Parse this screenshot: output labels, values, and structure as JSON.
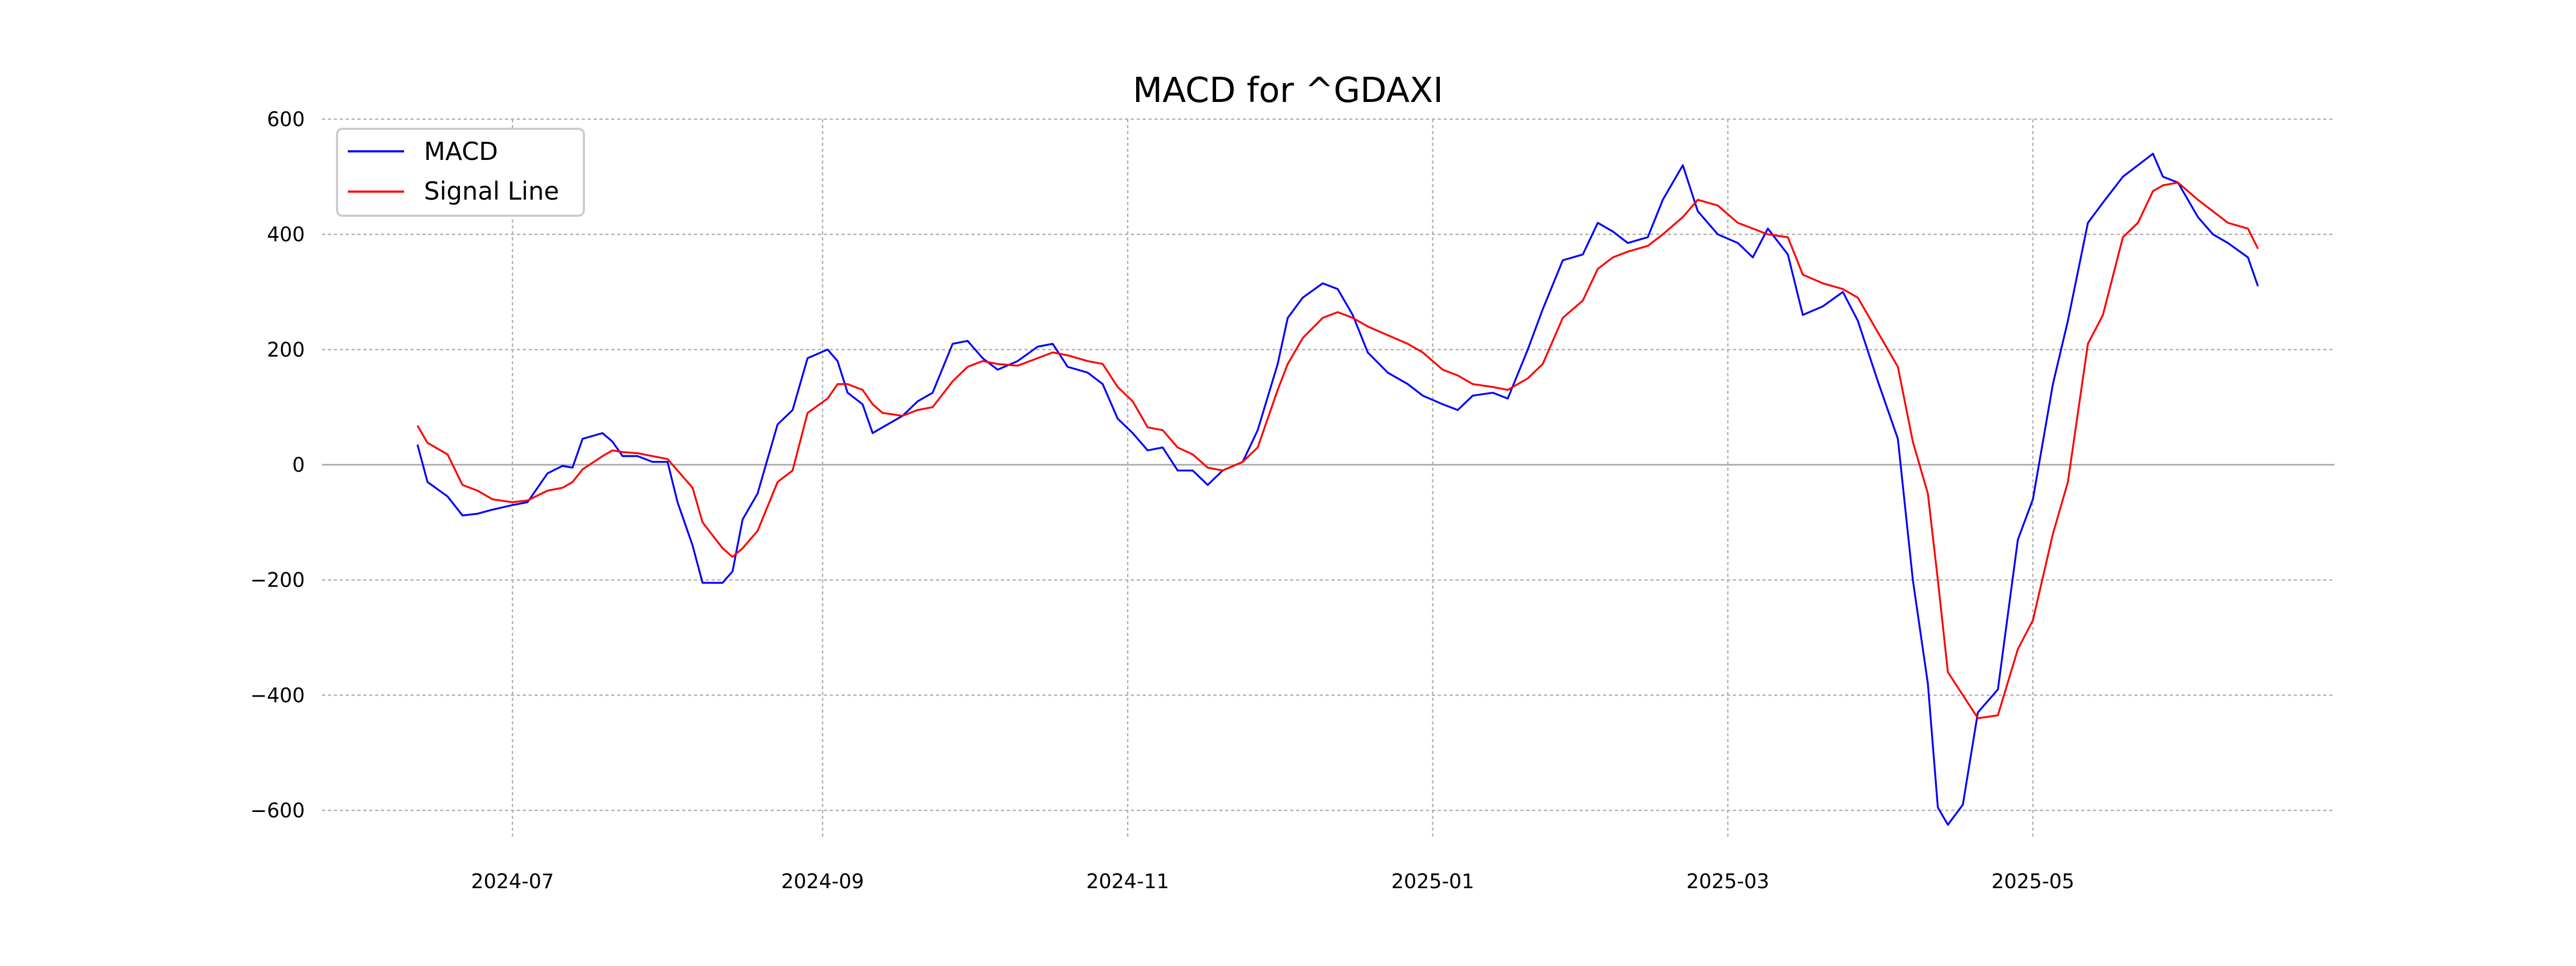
{
  "chart_data": {
    "type": "line",
    "title": "MACD for ^GDAXI",
    "xlabel": "",
    "ylabel": "",
    "grid": true,
    "legend_position": "top-left",
    "ylim": [
      -660,
      600
    ],
    "xlim": [
      "2024-06-01",
      "2025-06-30"
    ],
    "y_ticks": [
      600,
      400,
      200,
      0,
      -200,
      -400,
      -600
    ],
    "y_tick_labels": [
      "600",
      "400",
      "200",
      "0",
      "−200",
      "−400",
      "−600"
    ],
    "x_ticks": [
      "2024-07-01",
      "2024-09-01",
      "2024-11-01",
      "2025-01-01",
      "2025-03-01",
      "2025-05-01"
    ],
    "x_tick_labels": [
      "2024-07",
      "2024-09",
      "2024-11",
      "2025-01",
      "2025-03",
      "2025-05"
    ],
    "series": [
      {
        "name": "MACD",
        "color": "#0000ff",
        "points": [
          [
            "2024-06-12",
            35
          ],
          [
            "2024-06-14",
            -30
          ],
          [
            "2024-06-18",
            -55
          ],
          [
            "2024-06-21",
            -88
          ],
          [
            "2024-06-24",
            -85
          ],
          [
            "2024-06-27",
            -78
          ],
          [
            "2024-07-01",
            -70
          ],
          [
            "2024-07-04",
            -65
          ],
          [
            "2024-07-08",
            -15
          ],
          [
            "2024-07-11",
            -2
          ],
          [
            "2024-07-13",
            -5
          ],
          [
            "2024-07-15",
            45
          ],
          [
            "2024-07-19",
            55
          ],
          [
            "2024-07-21",
            40
          ],
          [
            "2024-07-23",
            15
          ],
          [
            "2024-07-26",
            15
          ],
          [
            "2024-07-29",
            5
          ],
          [
            "2024-08-01",
            5
          ],
          [
            "2024-08-03",
            -65
          ],
          [
            "2024-08-06",
            -140
          ],
          [
            "2024-08-08",
            -205
          ],
          [
            "2024-08-12",
            -205
          ],
          [
            "2024-08-14",
            -185
          ],
          [
            "2024-08-16",
            -95
          ],
          [
            "2024-08-19",
            -50
          ],
          [
            "2024-08-23",
            70
          ],
          [
            "2024-08-26",
            95
          ],
          [
            "2024-08-29",
            185
          ],
          [
            "2024-09-02",
            200
          ],
          [
            "2024-09-04",
            180
          ],
          [
            "2024-09-06",
            125
          ],
          [
            "2024-09-09",
            105
          ],
          [
            "2024-09-11",
            55
          ],
          [
            "2024-09-13",
            65
          ],
          [
            "2024-09-17",
            85
          ],
          [
            "2024-09-20",
            110
          ],
          [
            "2024-09-23",
            125
          ],
          [
            "2024-09-27",
            210
          ],
          [
            "2024-09-30",
            215
          ],
          [
            "2024-10-03",
            185
          ],
          [
            "2024-10-06",
            165
          ],
          [
            "2024-10-10",
            180
          ],
          [
            "2024-10-14",
            205
          ],
          [
            "2024-10-17",
            210
          ],
          [
            "2024-10-20",
            170
          ],
          [
            "2024-10-24",
            160
          ],
          [
            "2024-10-27",
            140
          ],
          [
            "2024-10-30",
            80
          ],
          [
            "2024-11-02",
            55
          ],
          [
            "2024-11-05",
            25
          ],
          [
            "2024-11-08",
            30
          ],
          [
            "2024-11-11",
            -10
          ],
          [
            "2024-11-14",
            -10
          ],
          [
            "2024-11-17",
            -35
          ],
          [
            "2024-11-20",
            -10
          ],
          [
            "2024-11-24",
            5
          ],
          [
            "2024-11-27",
            60
          ],
          [
            "2024-12-01",
            175
          ],
          [
            "2024-12-03",
            255
          ],
          [
            "2024-12-06",
            290
          ],
          [
            "2024-12-10",
            315
          ],
          [
            "2024-12-13",
            305
          ],
          [
            "2024-12-16",
            260
          ],
          [
            "2024-12-19",
            195
          ],
          [
            "2024-12-23",
            160
          ],
          [
            "2024-12-27",
            140
          ],
          [
            "2024-12-30",
            120
          ],
          [
            "2025-01-03",
            105
          ],
          [
            "2025-01-06",
            95
          ],
          [
            "2025-01-09",
            120
          ],
          [
            "2025-01-13",
            125
          ],
          [
            "2025-01-16",
            115
          ],
          [
            "2025-01-20",
            200
          ],
          [
            "2025-01-23",
            270
          ],
          [
            "2025-01-27",
            355
          ],
          [
            "2025-01-31",
            365
          ],
          [
            "2025-02-03",
            420
          ],
          [
            "2025-02-06",
            405
          ],
          [
            "2025-02-09",
            385
          ],
          [
            "2025-02-13",
            395
          ],
          [
            "2025-02-16",
            460
          ],
          [
            "2025-02-20",
            520
          ],
          [
            "2025-02-23",
            440
          ],
          [
            "2025-02-27",
            400
          ],
          [
            "2025-03-03",
            385
          ],
          [
            "2025-03-06",
            360
          ],
          [
            "2025-03-09",
            410
          ],
          [
            "2025-03-13",
            365
          ],
          [
            "2025-03-16",
            260
          ],
          [
            "2025-03-20",
            275
          ],
          [
            "2025-03-24",
            300
          ],
          [
            "2025-03-27",
            250
          ],
          [
            "2025-03-31",
            145
          ],
          [
            "2025-04-04",
            45
          ],
          [
            "2025-04-07",
            -200
          ],
          [
            "2025-04-10",
            -380
          ],
          [
            "2025-04-12",
            -595
          ],
          [
            "2025-04-14",
            -625
          ],
          [
            "2025-04-17",
            -590
          ],
          [
            "2025-04-20",
            -430
          ],
          [
            "2025-04-24",
            -390
          ],
          [
            "2025-04-28",
            -130
          ],
          [
            "2025-05-01",
            -60
          ],
          [
            "2025-05-05",
            140
          ],
          [
            "2025-05-08",
            250
          ],
          [
            "2025-05-12",
            420
          ],
          [
            "2025-05-15",
            455
          ],
          [
            "2025-05-19",
            500
          ],
          [
            "2025-05-22",
            520
          ],
          [
            "2025-05-25",
            540
          ],
          [
            "2025-05-27",
            500
          ],
          [
            "2025-05-30",
            490
          ],
          [
            "2025-06-03",
            430
          ],
          [
            "2025-06-06",
            400
          ],
          [
            "2025-06-09",
            385
          ],
          [
            "2025-06-13",
            360
          ],
          [
            "2025-06-15",
            310
          ]
        ]
      },
      {
        "name": "Signal Line",
        "color": "#ff0000",
        "points": [
          [
            "2024-06-12",
            68
          ],
          [
            "2024-06-14",
            38
          ],
          [
            "2024-06-18",
            18
          ],
          [
            "2024-06-21",
            -35
          ],
          [
            "2024-06-24",
            -45
          ],
          [
            "2024-06-27",
            -60
          ],
          [
            "2024-07-01",
            -65
          ],
          [
            "2024-07-04",
            -62
          ],
          [
            "2024-07-08",
            -45
          ],
          [
            "2024-07-11",
            -40
          ],
          [
            "2024-07-13",
            -30
          ],
          [
            "2024-07-15",
            -8
          ],
          [
            "2024-07-19",
            15
          ],
          [
            "2024-07-21",
            25
          ],
          [
            "2024-07-23",
            22
          ],
          [
            "2024-07-26",
            20
          ],
          [
            "2024-07-29",
            15
          ],
          [
            "2024-08-01",
            10
          ],
          [
            "2024-08-03",
            -10
          ],
          [
            "2024-08-06",
            -40
          ],
          [
            "2024-08-08",
            -100
          ],
          [
            "2024-08-12",
            -145
          ],
          [
            "2024-08-14",
            -160
          ],
          [
            "2024-08-16",
            -145
          ],
          [
            "2024-08-19",
            -115
          ],
          [
            "2024-08-23",
            -30
          ],
          [
            "2024-08-26",
            -10
          ],
          [
            "2024-08-29",
            90
          ],
          [
            "2024-09-02",
            115
          ],
          [
            "2024-09-04",
            140
          ],
          [
            "2024-09-06",
            140
          ],
          [
            "2024-09-09",
            130
          ],
          [
            "2024-09-11",
            105
          ],
          [
            "2024-09-13",
            90
          ],
          [
            "2024-09-17",
            85
          ],
          [
            "2024-09-20",
            95
          ],
          [
            "2024-09-23",
            100
          ],
          [
            "2024-09-27",
            145
          ],
          [
            "2024-09-30",
            170
          ],
          [
            "2024-10-03",
            180
          ],
          [
            "2024-10-06",
            175
          ],
          [
            "2024-10-10",
            172
          ],
          [
            "2024-10-14",
            185
          ],
          [
            "2024-10-17",
            195
          ],
          [
            "2024-10-20",
            190
          ],
          [
            "2024-10-24",
            180
          ],
          [
            "2024-10-27",
            175
          ],
          [
            "2024-10-30",
            135
          ],
          [
            "2024-11-02",
            110
          ],
          [
            "2024-11-05",
            65
          ],
          [
            "2024-11-08",
            60
          ],
          [
            "2024-11-11",
            30
          ],
          [
            "2024-11-14",
            18
          ],
          [
            "2024-11-17",
            -5
          ],
          [
            "2024-11-20",
            -10
          ],
          [
            "2024-11-24",
            5
          ],
          [
            "2024-11-27",
            30
          ],
          [
            "2024-12-01",
            130
          ],
          [
            "2024-12-03",
            175
          ],
          [
            "2024-12-06",
            220
          ],
          [
            "2024-12-10",
            255
          ],
          [
            "2024-12-13",
            265
          ],
          [
            "2024-12-16",
            255
          ],
          [
            "2024-12-19",
            240
          ],
          [
            "2024-12-23",
            225
          ],
          [
            "2024-12-27",
            210
          ],
          [
            "2024-12-30",
            195
          ],
          [
            "2025-01-03",
            165
          ],
          [
            "2025-01-06",
            155
          ],
          [
            "2025-01-09",
            140
          ],
          [
            "2025-01-13",
            135
          ],
          [
            "2025-01-16",
            130
          ],
          [
            "2025-01-20",
            150
          ],
          [
            "2025-01-23",
            175
          ],
          [
            "2025-01-27",
            255
          ],
          [
            "2025-01-31",
            285
          ],
          [
            "2025-02-03",
            340
          ],
          [
            "2025-02-06",
            360
          ],
          [
            "2025-02-09",
            370
          ],
          [
            "2025-02-13",
            380
          ],
          [
            "2025-02-16",
            400
          ],
          [
            "2025-02-20",
            430
          ],
          [
            "2025-02-23",
            460
          ],
          [
            "2025-02-27",
            450
          ],
          [
            "2025-03-03",
            420
          ],
          [
            "2025-03-06",
            410
          ],
          [
            "2025-03-09",
            400
          ],
          [
            "2025-03-13",
            395
          ],
          [
            "2025-03-16",
            330
          ],
          [
            "2025-03-20",
            315
          ],
          [
            "2025-03-24",
            305
          ],
          [
            "2025-03-27",
            290
          ],
          [
            "2025-03-31",
            230
          ],
          [
            "2025-04-04",
            170
          ],
          [
            "2025-04-07",
            40
          ],
          [
            "2025-04-10",
            -50
          ],
          [
            "2025-04-12",
            -200
          ],
          [
            "2025-04-14",
            -360
          ],
          [
            "2025-04-17",
            -400
          ],
          [
            "2025-04-20",
            -440
          ],
          [
            "2025-04-24",
            -435
          ],
          [
            "2025-04-28",
            -320
          ],
          [
            "2025-05-01",
            -270
          ],
          [
            "2025-05-05",
            -120
          ],
          [
            "2025-05-08",
            -30
          ],
          [
            "2025-05-12",
            210
          ],
          [
            "2025-05-15",
            260
          ],
          [
            "2025-05-19",
            395
          ],
          [
            "2025-05-22",
            420
          ],
          [
            "2025-05-25",
            475
          ],
          [
            "2025-05-27",
            485
          ],
          [
            "2025-05-30",
            490
          ],
          [
            "2025-06-03",
            460
          ],
          [
            "2025-06-06",
            440
          ],
          [
            "2025-06-09",
            420
          ],
          [
            "2025-06-13",
            410
          ],
          [
            "2025-06-15",
            375
          ]
        ]
      }
    ],
    "zero_line_color": "#aaaaaa",
    "grid_color": "#b0b0b0"
  }
}
